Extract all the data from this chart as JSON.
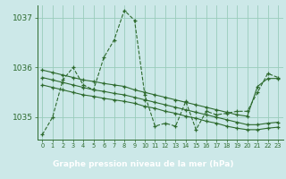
{
  "title": "Graphe pression niveau de la mer (hPa)",
  "bg_color": "#cce8e8",
  "plot_bg": "#cce8e8",
  "grid_color": "#99ccbb",
  "line_color": "#2d6a2d",
  "footer_bg": "#3a7a3a",
  "footer_text_color": "#ffffff",
  "xlim": [
    -0.5,
    23.5
  ],
  "ylim": [
    1034.55,
    1037.25
  ],
  "yticks": [
    1035,
    1036,
    1037
  ],
  "xtick_labels": [
    "0",
    "1",
    "2",
    "3",
    "4",
    "5",
    "6",
    "7",
    "8",
    "9",
    "10",
    "11",
    "12",
    "13",
    "14",
    "15",
    "16",
    "17",
    "18",
    "19",
    "20",
    "21",
    "22",
    "23"
  ],
  "hours": [
    0,
    1,
    2,
    3,
    4,
    5,
    6,
    7,
    8,
    9,
    10,
    11,
    12,
    13,
    14,
    15,
    16,
    17,
    18,
    19,
    20,
    21,
    22,
    23
  ],
  "pressure_main": [
    1034.65,
    1035.0,
    1035.75,
    1036.0,
    1035.65,
    1035.55,
    1036.2,
    1036.55,
    1037.15,
    1036.95,
    1035.45,
    1034.82,
    1034.88,
    1034.82,
    1035.32,
    1034.75,
    1035.12,
    1035.05,
    1035.08,
    1035.12,
    1035.12,
    1035.5,
    1035.88,
    1035.8
  ],
  "trend1": [
    1035.95,
    1035.9,
    1035.85,
    1035.8,
    1035.75,
    1035.72,
    1035.68,
    1035.65,
    1035.62,
    1035.55,
    1035.5,
    1035.45,
    1035.4,
    1035.35,
    1035.3,
    1035.25,
    1035.2,
    1035.15,
    1035.1,
    1035.05,
    1035.02,
    1035.62,
    1035.78,
    1035.78
  ],
  "trend2": [
    1035.8,
    1035.75,
    1035.7,
    1035.65,
    1035.6,
    1035.55,
    1035.52,
    1035.48,
    1035.45,
    1035.4,
    1035.35,
    1035.3,
    1035.25,
    1035.2,
    1035.15,
    1035.1,
    1035.05,
    1035.0,
    1034.95,
    1034.9,
    1034.85,
    1034.85,
    1034.88,
    1034.9
  ],
  "trend3": [
    1035.65,
    1035.6,
    1035.55,
    1035.5,
    1035.45,
    1035.42,
    1035.38,
    1035.35,
    1035.32,
    1035.28,
    1035.22,
    1035.18,
    1035.12,
    1035.08,
    1035.02,
    1034.98,
    1034.92,
    1034.88,
    1034.82,
    1034.78,
    1034.75,
    1034.75,
    1034.78,
    1034.8
  ]
}
